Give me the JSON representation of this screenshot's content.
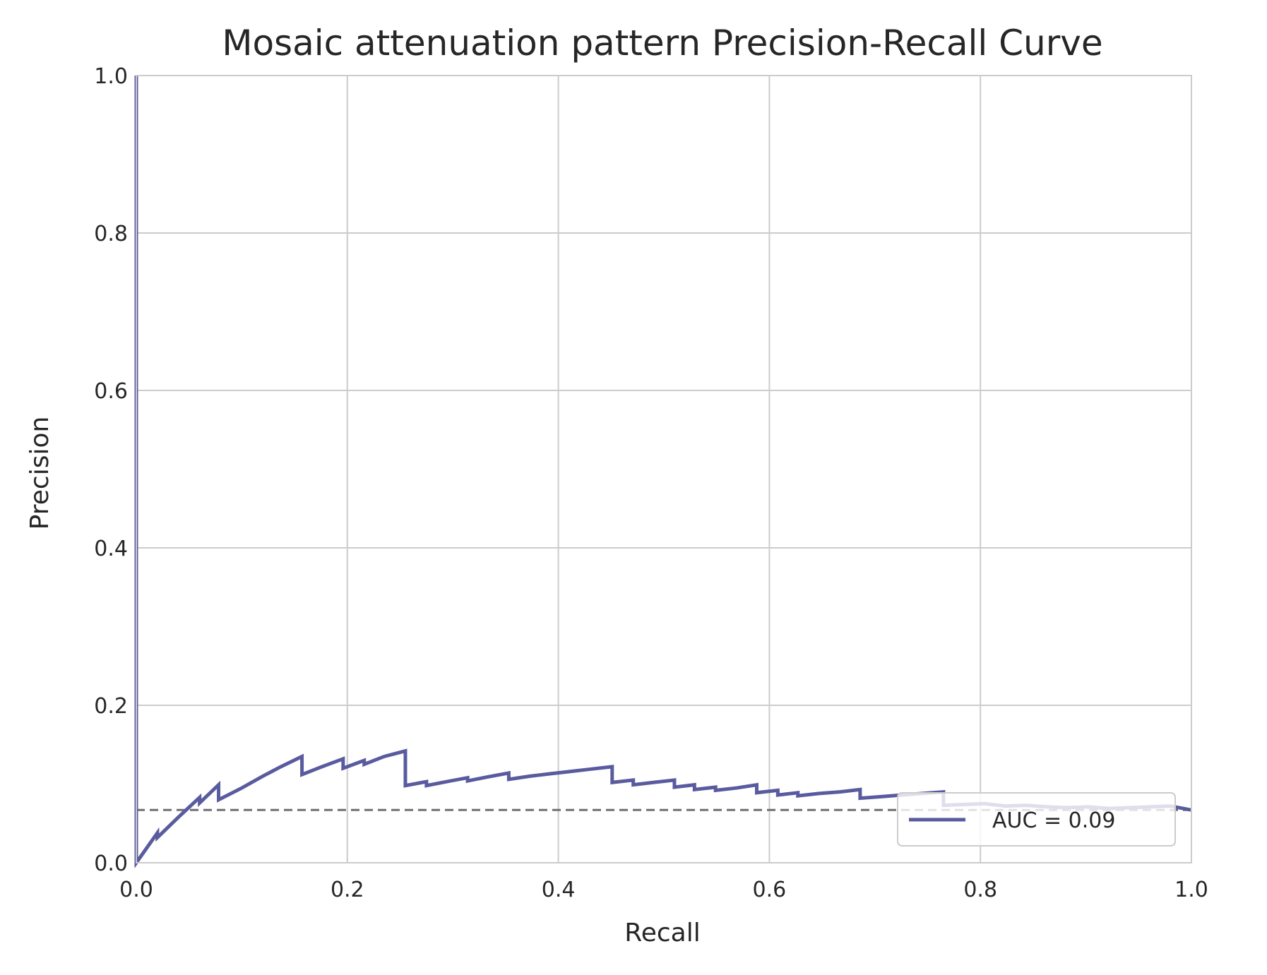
{
  "chart_data": {
    "type": "line",
    "title": "Mosaic attenuation pattern Precision-Recall Curve",
    "xlabel": "Recall",
    "ylabel": "Precision",
    "xlim": [
      0.0,
      1.0
    ],
    "ylim": [
      0.0,
      1.0
    ],
    "xticks": [
      "0.0",
      "0.2",
      "0.4",
      "0.6",
      "0.8",
      "1.0"
    ],
    "yticks": [
      "0.0",
      "0.2",
      "0.4",
      "0.6",
      "0.8",
      "1.0"
    ],
    "grid": true,
    "legend_position": "lower-right",
    "legend_label": "AUC = 0.09",
    "series_color": "#5a5b9f",
    "baseline_color": "#707070",
    "grid_color": "#cccccc",
    "baseline": 0.067,
    "series": [
      {
        "name": "AUC = 0.09",
        "x": [
          0.0,
          0.0,
          0.0,
          0.02,
          0.02,
          0.04,
          0.06,
          0.06,
          0.078,
          0.078,
          0.1,
          0.12,
          0.137,
          0.157,
          0.157,
          0.176,
          0.196,
          0.196,
          0.216,
          0.216,
          0.235,
          0.255,
          0.255,
          0.275,
          0.275,
          0.294,
          0.314,
          0.314,
          0.333,
          0.353,
          0.353,
          0.373,
          0.392,
          0.412,
          0.431,
          0.451,
          0.451,
          0.471,
          0.471,
          0.49,
          0.51,
          0.51,
          0.529,
          0.529,
          0.549,
          0.549,
          0.569,
          0.588,
          0.588,
          0.608,
          0.608,
          0.627,
          0.627,
          0.647,
          0.667,
          0.686,
          0.686,
          0.706,
          0.725,
          0.745,
          0.765,
          0.765,
          0.784,
          0.804,
          0.824,
          0.843,
          0.863,
          0.882,
          0.902,
          0.922,
          0.941,
          0.961,
          0.98,
          1.0
        ],
        "y": [
          1.0,
          0.0,
          0.0,
          0.038,
          0.032,
          0.058,
          0.083,
          0.076,
          0.099,
          0.08,
          0.095,
          0.11,
          0.122,
          0.135,
          0.112,
          0.122,
          0.132,
          0.12,
          0.13,
          0.125,
          0.135,
          0.142,
          0.098,
          0.103,
          0.098,
          0.103,
          0.108,
          0.104,
          0.109,
          0.114,
          0.106,
          0.11,
          0.113,
          0.116,
          0.119,
          0.122,
          0.102,
          0.105,
          0.099,
          0.102,
          0.105,
          0.096,
          0.099,
          0.093,
          0.096,
          0.092,
          0.095,
          0.099,
          0.089,
          0.092,
          0.086,
          0.089,
          0.085,
          0.088,
          0.09,
          0.093,
          0.082,
          0.084,
          0.086,
          0.088,
          0.09,
          0.073,
          0.074,
          0.075,
          0.072,
          0.073,
          0.071,
          0.07,
          0.071,
          0.069,
          0.07,
          0.071,
          0.072,
          0.067
        ]
      }
    ]
  }
}
